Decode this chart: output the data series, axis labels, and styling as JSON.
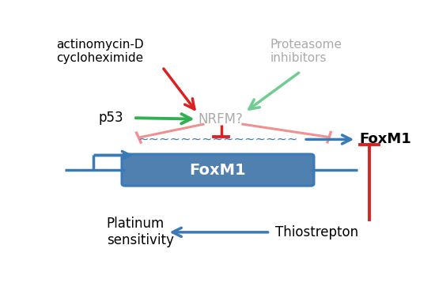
{
  "fig_width": 5.5,
  "fig_height": 3.72,
  "dpi": 100,
  "bg_color": "#ffffff",
  "colors": {
    "blue": "#3a7ab5",
    "red": "#dd2020",
    "green": "#30b050",
    "light_green": "#70cc90",
    "pink": "#f09090",
    "gray_text": "#aaaaaa",
    "foxm1_box": "#5080b0",
    "foxm1_box_text": "#ffffff"
  },
  "labels": {
    "actinomycin": "actinomycin-D\ncycloheximide",
    "p53": "p53",
    "nrfm": "NRFM?",
    "proteasome": "Proteasome\ninhibitors",
    "foxm1_mrna": "FoxM1",
    "foxm1_gene": "FoxM1",
    "platinum": "Platinum\nsensitivity",
    "thiostrepton": "Thiostrepton",
    "wavy": "~~~~~~~~~~~~~~~"
  }
}
